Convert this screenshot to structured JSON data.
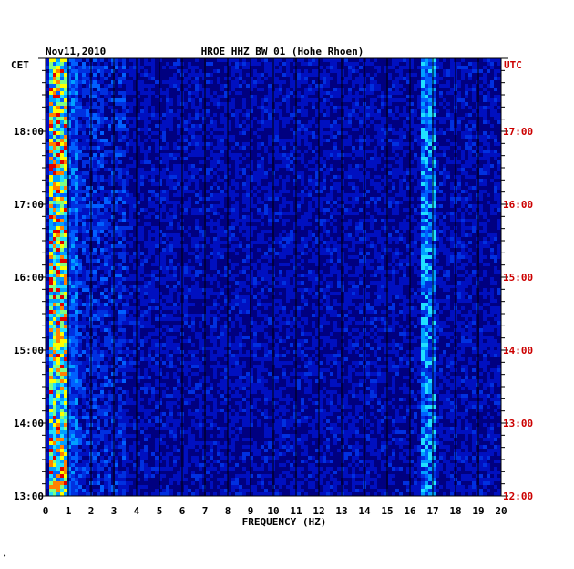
{
  "header": {
    "date": "Nov11,2010",
    "station": "HROE HHZ BW 01 (Hohe Rhoen)",
    "left_zone": "CET",
    "right_zone": "UTC"
  },
  "footer_mark": "•",
  "colors": {
    "background": "#000080",
    "left_axis_text": "#000000",
    "right_axis_text": "#cc0000",
    "gridline": "#000000"
  },
  "chart_data": {
    "type": "heatmap",
    "title": "HROE HHZ BW 01 (Hohe Rhoen)",
    "xlabel": "FREQUENCY (HZ)",
    "xlim": [
      0,
      20
    ],
    "x_ticks": [
      "0",
      "1",
      "2",
      "3",
      "4",
      "5",
      "6",
      "7",
      "8",
      "9",
      "10",
      "11",
      "12",
      "13",
      "14",
      "15",
      "16",
      "17",
      "18",
      "19",
      "20"
    ],
    "y_axis_left": {
      "label": "CET",
      "ticks": [
        "18:00",
        "17:00",
        "16:00",
        "15:00",
        "14:00",
        "13:00"
      ]
    },
    "y_axis_right": {
      "label": "UTC",
      "ticks": [
        "17:00",
        "16:00",
        "15:00",
        "14:00",
        "13:00",
        "12:00"
      ]
    },
    "ylim_cet_hours": [
      13,
      19
    ],
    "grid": true,
    "description_bands": [
      {
        "freq_range_hz": [
          0.2,
          0.8
        ],
        "intensity": "high"
      },
      {
        "freq_range_hz": [
          16.4,
          17.0
        ],
        "intensity": "medium"
      }
    ]
  }
}
